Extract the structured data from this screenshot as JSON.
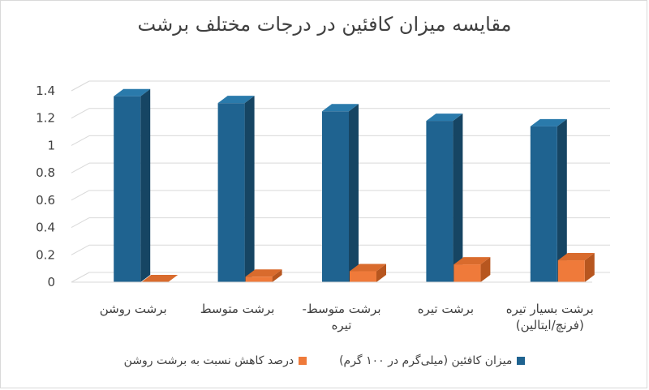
{
  "title": "مقایسه میزان کافئین در درجات مختلف برشت",
  "colors": {
    "caffeine": "#1f6390",
    "caffeine_side": "#164563",
    "caffeine_top": "#2a7aab",
    "reduction": "#ef7a3a",
    "reduction_side": "#b7561f",
    "reduction_top": "#d96b2d"
  },
  "chart_data": {
    "type": "bar",
    "title": "مقایسه میزان کافئین در درجات مختلف برشت",
    "categories": [
      "برشت روشن",
      "برشت متوسط",
      "برشت متوسط-تیره",
      "برشت تیره",
      "برشت بسیار تیره (فرنچ/ایتالین)"
    ],
    "category_lines": [
      [
        "برشت روشن"
      ],
      [
        "برشت متوسط"
      ],
      [
        "برشت متوسط-",
        "تیره"
      ],
      [
        "برشت تیره"
      ],
      [
        "برشت بسیار تیره",
        "(فرنچ/ایتالین)"
      ]
    ],
    "series": [
      {
        "name": "میزان کافئین (میلی‌گرم در ۱۰۰ گرم)",
        "values": [
          1.36,
          1.31,
          1.25,
          1.18,
          1.14
        ]
      },
      {
        "name": "درصد کاهش نسبت به برشت روشن",
        "values": [
          0.0,
          0.04,
          0.08,
          0.13,
          0.16
        ]
      }
    ],
    "ylim": [
      0,
      1.4
    ],
    "yticks": [
      "0",
      "0.2",
      "0.4",
      "0.6",
      "0.8",
      "1",
      "1.2",
      "1.4"
    ],
    "grid": true,
    "legend_position": "bottom",
    "style": "3d-clustered-column"
  }
}
